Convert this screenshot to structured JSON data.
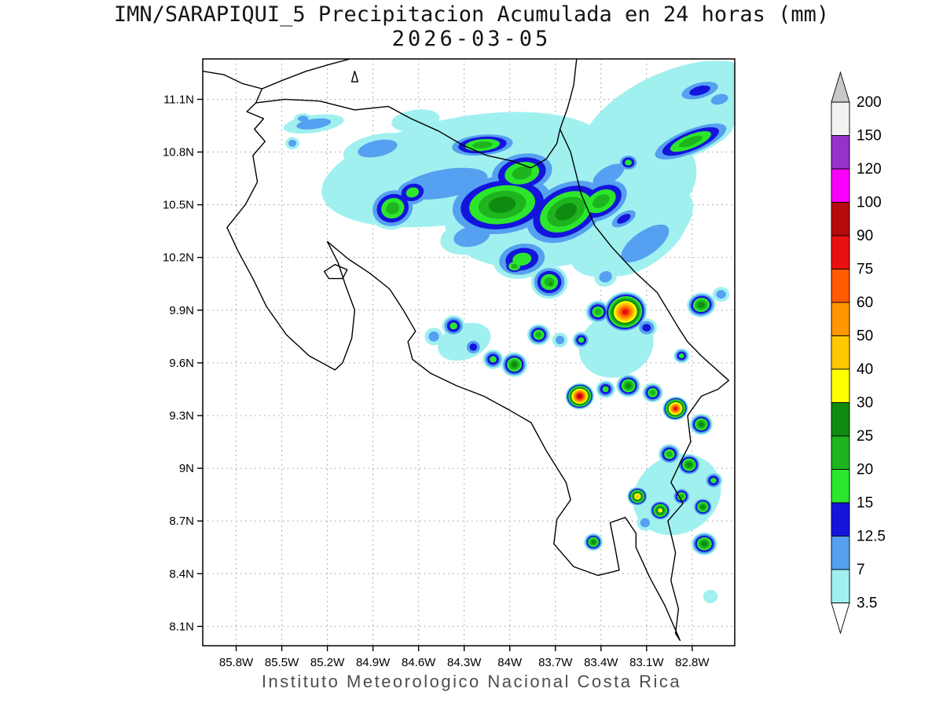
{
  "header": {
    "title": "IMN/SARAPIQUI_5 Precipitacion Acumulada en 24 horas (mm)",
    "date": "2026-03-05"
  },
  "footer": {
    "text": "Instituto Meteorologico Nacional Costa Rica"
  },
  "map": {
    "bounds": {
      "lon_west": 86.02,
      "lon_east": 82.52,
      "lat_north": 11.33,
      "lat_south": 7.99
    },
    "lat_ticks": [
      {
        "value": 11.1,
        "label": "11.1N"
      },
      {
        "value": 10.8,
        "label": "10.8N"
      },
      {
        "value": 10.5,
        "label": "10.5N"
      },
      {
        "value": 10.2,
        "label": "10.2N"
      },
      {
        "value": 9.9,
        "label": "9.9N"
      },
      {
        "value": 9.6,
        "label": "9.6N"
      },
      {
        "value": 9.3,
        "label": "9.3N"
      },
      {
        "value": 9.0,
        "label": "9N"
      },
      {
        "value": 8.7,
        "label": "8.7N"
      },
      {
        "value": 8.4,
        "label": "8.4N"
      },
      {
        "value": 8.1,
        "label": "8.1N"
      }
    ],
    "lon_ticks": [
      {
        "value": 85.8,
        "label": "85.8W"
      },
      {
        "value": 85.5,
        "label": "85.5W"
      },
      {
        "value": 85.2,
        "label": "85.2W"
      },
      {
        "value": 84.9,
        "label": "84.9W"
      },
      {
        "value": 84.6,
        "label": "84.6W"
      },
      {
        "value": 84.3,
        "label": "84.3W"
      },
      {
        "value": 84.0,
        "label": "84W"
      },
      {
        "value": 83.7,
        "label": "83.7W"
      },
      {
        "value": 83.4,
        "label": "83.4W"
      },
      {
        "value": 83.1,
        "label": "83.1W"
      },
      {
        "value": 82.8,
        "label": "82.8W"
      }
    ],
    "coastlines": [
      [
        [
          83.56,
          11.33
        ],
        [
          83.58,
          11.18
        ],
        [
          83.62,
          11.05
        ],
        [
          83.67,
          10.93
        ],
        [
          83.6,
          10.8
        ],
        [
          83.53,
          10.56
        ],
        [
          83.44,
          10.38
        ],
        [
          83.33,
          10.26
        ],
        [
          83.18,
          10.12
        ],
        [
          83.03,
          10.0
        ],
        [
          82.89,
          9.8
        ],
        [
          82.83,
          9.72
        ],
        [
          82.74,
          9.64
        ],
        [
          82.56,
          9.5
        ],
        [
          82.63,
          9.45
        ],
        [
          82.74,
          9.41
        ],
        [
          82.83,
          9.3
        ],
        [
          82.81,
          9.15
        ],
        [
          82.88,
          9.03
        ],
        [
          82.94,
          8.92
        ],
        [
          82.86,
          8.8
        ],
        [
          82.96,
          8.7
        ],
        [
          82.91,
          8.52
        ],
        [
          82.94,
          8.36
        ],
        [
          82.89,
          8.2
        ],
        [
          82.91,
          8.06
        ],
        [
          82.88,
          8.02
        ],
        [
          82.98,
          8.22
        ],
        [
          83.08,
          8.38
        ],
        [
          83.17,
          8.55
        ],
        [
          83.17,
          8.63
        ],
        [
          83.24,
          8.72
        ],
        [
          83.34,
          8.69
        ],
        [
          83.31,
          8.56
        ],
        [
          83.28,
          8.42
        ],
        [
          83.42,
          8.39
        ],
        [
          83.58,
          8.44
        ],
        [
          83.71,
          8.57
        ],
        [
          83.69,
          8.71
        ],
        [
          83.6,
          8.82
        ],
        [
          83.63,
          8.92
        ],
        [
          83.76,
          9.1
        ],
        [
          83.86,
          9.26
        ],
        [
          84.0,
          9.33
        ],
        [
          84.17,
          9.41
        ],
        [
          84.35,
          9.47
        ],
        [
          84.52,
          9.54
        ],
        [
          84.64,
          9.62
        ],
        [
          84.67,
          9.72
        ],
        [
          84.62,
          9.78
        ],
        [
          84.7,
          9.9
        ],
        [
          84.79,
          10.02
        ],
        [
          84.92,
          10.11
        ],
        [
          85.06,
          10.19
        ],
        [
          85.2,
          10.29
        ],
        [
          85.13,
          10.17
        ],
        [
          85.08,
          10.04
        ],
        [
          85.02,
          9.9
        ],
        [
          85.04,
          9.74
        ],
        [
          85.1,
          9.6
        ],
        [
          85.15,
          9.56
        ],
        [
          85.32,
          9.64
        ],
        [
          85.47,
          9.76
        ],
        [
          85.6,
          9.92
        ],
        [
          85.69,
          10.08
        ],
        [
          85.79,
          10.24
        ],
        [
          85.86,
          10.37
        ],
        [
          85.74,
          10.5
        ],
        [
          85.66,
          10.63
        ],
        [
          85.69,
          10.78
        ],
        [
          85.61,
          10.86
        ],
        [
          85.68,
          10.93
        ],
        [
          85.62,
          10.99
        ],
        [
          85.73,
          11.03
        ],
        [
          85.67,
          11.08
        ]
      ],
      [
        [
          85.67,
          11.08
        ],
        [
          85.48,
          11.1
        ],
        [
          85.25,
          11.09
        ],
        [
          85.02,
          11.04
        ],
        [
          84.8,
          11.06
        ],
        [
          84.65,
          10.99
        ],
        [
          84.47,
          10.92
        ],
        [
          84.31,
          10.84
        ],
        [
          84.15,
          10.78
        ],
        [
          83.99,
          10.75
        ],
        [
          83.86,
          10.71
        ],
        [
          83.76,
          10.76
        ],
        [
          83.69,
          10.85
        ],
        [
          83.67,
          10.93
        ]
      ],
      [
        [
          86.02,
          11.26
        ],
        [
          85.88,
          11.24
        ],
        [
          85.76,
          11.19
        ],
        [
          85.63,
          11.16
        ],
        [
          85.49,
          11.21
        ],
        [
          85.34,
          11.26
        ],
        [
          85.18,
          11.3
        ],
        [
          85.05,
          11.33
        ]
      ],
      [
        [
          85.67,
          11.08
        ],
        [
          85.63,
          11.16
        ]
      ],
      [
        [
          85.22,
          10.12
        ],
        [
          85.15,
          10.16
        ],
        [
          85.07,
          10.13
        ],
        [
          85.1,
          10.08
        ],
        [
          85.19,
          10.08
        ],
        [
          85.22,
          10.12
        ]
      ],
      [
        [
          85.04,
          11.2
        ],
        [
          85.0,
          11.2
        ],
        [
          85.02,
          11.26
        ],
        [
          85.04,
          11.2
        ]
      ]
    ]
  },
  "colorbar": {
    "labels": [
      "200",
      "150",
      "120",
      "100",
      "90",
      "75",
      "60",
      "50",
      "40",
      "30",
      "25",
      "20",
      "15",
      "12.5",
      "7",
      "3.5"
    ],
    "segment_colors_top_to_bottom": [
      "#f2f2f2",
      "#9632c8",
      "#fa00fa",
      "#b40a0a",
      "#eb1010",
      "#ff5a00",
      "#ff9600",
      "#ffc800",
      "#ffff00",
      "#0f8c0f",
      "#1eb41e",
      "#2ce62c",
      "#1414dc",
      "#55a0f0",
      "#a0f0f0"
    ],
    "arrow_top_color": "#c8c8c8",
    "arrow_bottom_color": "#ffffff"
  },
  "chart_data": {
    "type": "heatmap",
    "title": "IMN/SARAPIQUI_5 Precipitacion Acumulada en 24 horas (mm) 2026-03-05",
    "units": "mm",
    "levels": [
      3.5,
      7,
      12.5,
      15,
      20,
      25,
      30,
      40,
      50,
      60,
      75,
      90,
      100,
      120,
      150,
      200
    ],
    "level_colors": [
      "#a0f0f0",
      "#55a0f0",
      "#1414dc",
      "#2ce62c",
      "#1eb41e",
      "#0f8c0f",
      "#ffff00",
      "#ffc800",
      "#ff9600",
      "#ff5a00",
      "#eb1010",
      "#b40a0a"
    ],
    "cell_format": [
      "lon_w",
      "lat_n",
      "rx_deg",
      "ry_deg",
      "rotation_deg",
      "max_level_index"
    ],
    "cells": [
      [
        85.29,
        10.96,
        0.2,
        0.05,
        -8,
        1
      ],
      [
        85.36,
        10.99,
        0.06,
        0.03,
        0,
        1
      ],
      [
        85.43,
        10.85,
        0.045,
        0.035,
        0,
        1
      ],
      [
        84.87,
        10.82,
        0.23,
        0.08,
        -12,
        1
      ],
      [
        84.92,
        10.8,
        0.07,
        0.04,
        0,
        1
      ],
      [
        84.62,
        10.98,
        0.16,
        0.06,
        -8,
        0
      ],
      [
        84.3,
        10.7,
        0.95,
        0.3,
        -10,
        0
      ],
      [
        83.6,
        10.55,
        0.85,
        0.38,
        -15,
        0
      ],
      [
        82.95,
        11.0,
        0.62,
        0.25,
        -25,
        0
      ],
      [
        83.2,
        10.35,
        0.45,
        0.2,
        -30,
        0
      ],
      [
        84.3,
        9.72,
        0.18,
        0.1,
        -20,
        0
      ],
      [
        83.3,
        9.7,
        0.25,
        0.18,
        -20,
        0
      ],
      [
        82.9,
        8.85,
        0.3,
        0.22,
        -30,
        0
      ],
      [
        84.43,
        10.62,
        0.5,
        0.14,
        -10,
        1
      ],
      [
        84.18,
        10.84,
        0.24,
        0.07,
        -5,
        4
      ],
      [
        84.64,
        10.57,
        0.13,
        0.085,
        -15,
        3
      ],
      [
        84.77,
        10.48,
        0.16,
        0.12,
        -20,
        4
      ],
      [
        84.05,
        10.5,
        0.38,
        0.19,
        -8,
        5
      ],
      [
        83.92,
        10.68,
        0.24,
        0.13,
        -12,
        4
      ],
      [
        83.63,
        10.46,
        0.32,
        0.18,
        -28,
        5
      ],
      [
        83.4,
        10.52,
        0.22,
        0.12,
        -30,
        4
      ],
      [
        82.81,
        10.86,
        0.3,
        0.08,
        -22,
        4
      ],
      [
        82.75,
        11.15,
        0.17,
        0.06,
        -15,
        2
      ],
      [
        82.62,
        11.1,
        0.1,
        0.05,
        -15,
        1
      ],
      [
        83.11,
        10.28,
        0.32,
        0.12,
        -35,
        1
      ],
      [
        83.25,
        10.42,
        0.12,
        0.05,
        -30,
        2
      ],
      [
        83.35,
        10.67,
        0.2,
        0.08,
        -30,
        1
      ],
      [
        83.22,
        10.74,
        0.07,
        0.05,
        0,
        3
      ],
      [
        83.92,
        10.19,
        0.19,
        0.11,
        -10,
        3
      ],
      [
        83.97,
        10.15,
        0.08,
        0.05,
        0,
        4
      ],
      [
        84.25,
        10.32,
        0.21,
        0.1,
        -12,
        1
      ],
      [
        83.74,
        10.06,
        0.12,
        0.095,
        0,
        4
      ],
      [
        83.73,
        10.05,
        0.05,
        0.04,
        0,
        5
      ],
      [
        84.5,
        9.75,
        0.06,
        0.05,
        0,
        1
      ],
      [
        84.37,
        9.81,
        0.075,
        0.06,
        0,
        3
      ],
      [
        84.24,
        9.69,
        0.06,
        0.05,
        0,
        2
      ],
      [
        84.11,
        9.62,
        0.068,
        0.055,
        0,
        3
      ],
      [
        83.97,
        9.59,
        0.085,
        0.07,
        0,
        5
      ],
      [
        83.81,
        9.76,
        0.075,
        0.06,
        0,
        4
      ],
      [
        83.67,
        9.73,
        0.05,
        0.042,
        0,
        1
      ],
      [
        83.37,
        10.09,
        0.075,
        0.055,
        -20,
        1
      ],
      [
        83.42,
        9.89,
        0.08,
        0.065,
        0,
        4
      ],
      [
        83.24,
        9.89,
        0.145,
        0.115,
        -15,
        10
      ],
      [
        83.1,
        9.8,
        0.068,
        0.052,
        0,
        2
      ],
      [
        83.53,
        9.73,
        0.058,
        0.048,
        0,
        3
      ],
      [
        83.54,
        9.41,
        0.095,
        0.075,
        -10,
        11
      ],
      [
        83.37,
        9.45,
        0.062,
        0.05,
        0,
        3
      ],
      [
        83.22,
        9.47,
        0.08,
        0.065,
        0,
        5
      ],
      [
        83.06,
        9.43,
        0.068,
        0.055,
        0,
        4
      ],
      [
        82.91,
        9.34,
        0.085,
        0.068,
        -15,
        10
      ],
      [
        82.74,
        9.25,
        0.075,
        0.06,
        0,
        5
      ],
      [
        82.74,
        9.93,
        0.095,
        0.07,
        -10,
        5
      ],
      [
        82.61,
        9.99,
        0.055,
        0.042,
        0,
        1
      ],
      [
        82.87,
        9.64,
        0.052,
        0.042,
        0,
        3
      ],
      [
        82.95,
        9.08,
        0.072,
        0.058,
        0,
        4
      ],
      [
        82.82,
        9.02,
        0.078,
        0.062,
        0,
        5
      ],
      [
        82.66,
        8.93,
        0.06,
        0.048,
        0,
        3
      ],
      [
        83.16,
        8.84,
        0.068,
        0.055,
        0,
        7
      ],
      [
        83.01,
        8.76,
        0.072,
        0.058,
        0,
        6
      ],
      [
        82.87,
        8.84,
        0.06,
        0.05,
        0,
        4
      ],
      [
        82.73,
        8.78,
        0.066,
        0.053,
        0,
        5
      ],
      [
        83.11,
        8.69,
        0.055,
        0.045,
        0,
        1
      ],
      [
        83.45,
        8.58,
        0.062,
        0.05,
        0,
        5
      ],
      [
        82.72,
        8.57,
        0.085,
        0.065,
        0,
        5
      ],
      [
        82.68,
        8.27,
        0.048,
        0.038,
        0,
        0
      ]
    ]
  }
}
